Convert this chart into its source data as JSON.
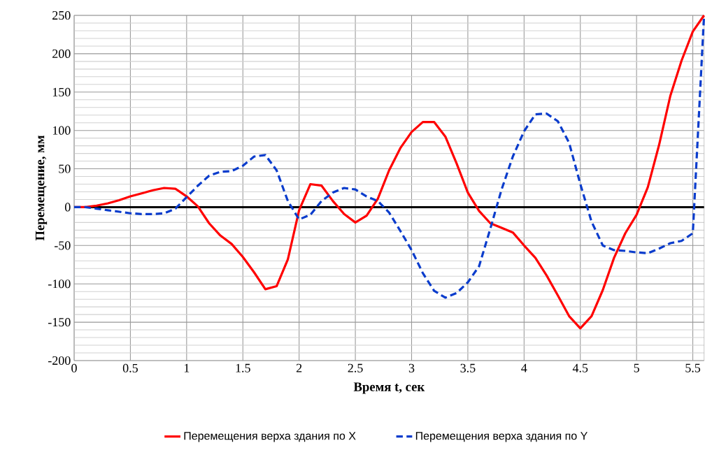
{
  "chart_data": {
    "type": "line",
    "xlabel": "Время t, сек",
    "ylabel": "Перемещение, мм",
    "x": [
      0,
      0.1,
      0.2,
      0.3,
      0.4,
      0.5,
      0.6,
      0.7,
      0.8,
      0.9,
      1.0,
      1.1,
      1.2,
      1.3,
      1.4,
      1.5,
      1.6,
      1.7,
      1.8,
      1.9,
      2.0,
      2.1,
      2.2,
      2.3,
      2.4,
      2.5,
      2.6,
      2.7,
      2.8,
      2.9,
      3.0,
      3.1,
      3.2,
      3.3,
      3.4,
      3.5,
      3.6,
      3.7,
      3.8,
      3.9,
      4.0,
      4.1,
      4.2,
      4.3,
      4.4,
      4.5,
      4.6,
      4.7,
      4.8,
      4.9,
      5.0,
      5.1,
      5.2,
      5.3,
      5.4,
      5.5,
      5.6
    ],
    "series": [
      {
        "name": "Перемещения верха здания по X",
        "color": "#ff0000",
        "line_style": "solid",
        "values": [
          0,
          0,
          2,
          5,
          9,
          14,
          18,
          22,
          25,
          24,
          14,
          1,
          -21,
          -37,
          -48,
          -65,
          -85,
          -107,
          -103,
          -68,
          -4,
          30,
          28,
          8,
          -9,
          -20,
          -11,
          11,
          48,
          77,
          98,
          111,
          111,
          92,
          57,
          19,
          -5,
          -21,
          -27,
          -33,
          -50,
          -66,
          -89,
          -115,
          -142,
          -158,
          -142,
          -108,
          -66,
          -34,
          -10,
          26,
          81,
          145,
          191,
          229,
          250
        ]
      },
      {
        "name": "Перемещения верха здания по Y",
        "color": "#0a3ccc",
        "line_style": "dashed",
        "values": [
          0,
          0,
          -2,
          -4,
          -6,
          -8,
          -9,
          -9,
          -8,
          -2,
          13,
          28,
          41,
          46,
          47,
          54,
          66,
          68,
          48,
          8,
          -16,
          -10,
          8,
          19,
          25,
          23,
          14,
          8,
          -7,
          -31,
          -56,
          -86,
          -109,
          -118,
          -112,
          -98,
          -77,
          -28,
          23,
          66,
          99,
          121,
          122,
          112,
          84,
          30,
          -19,
          -50,
          -56,
          -57,
          -59,
          -60,
          -54,
          -47,
          -44,
          -34,
          250
        ]
      }
    ],
    "xlim": [
      0,
      5.6
    ],
    "ylim": [
      -200,
      250
    ],
    "xticks": [
      0,
      0.5,
      1,
      1.5,
      2,
      2.5,
      3,
      3.5,
      4,
      4.5,
      5,
      5.5
    ],
    "yticks": [
      -200,
      -150,
      -100,
      -50,
      0,
      50,
      100,
      150,
      200,
      250
    ],
    "ref_lines": [
      {
        "axis": "y",
        "value": 0,
        "color": "#000000"
      }
    ],
    "grid": true,
    "legend": "bottom"
  }
}
